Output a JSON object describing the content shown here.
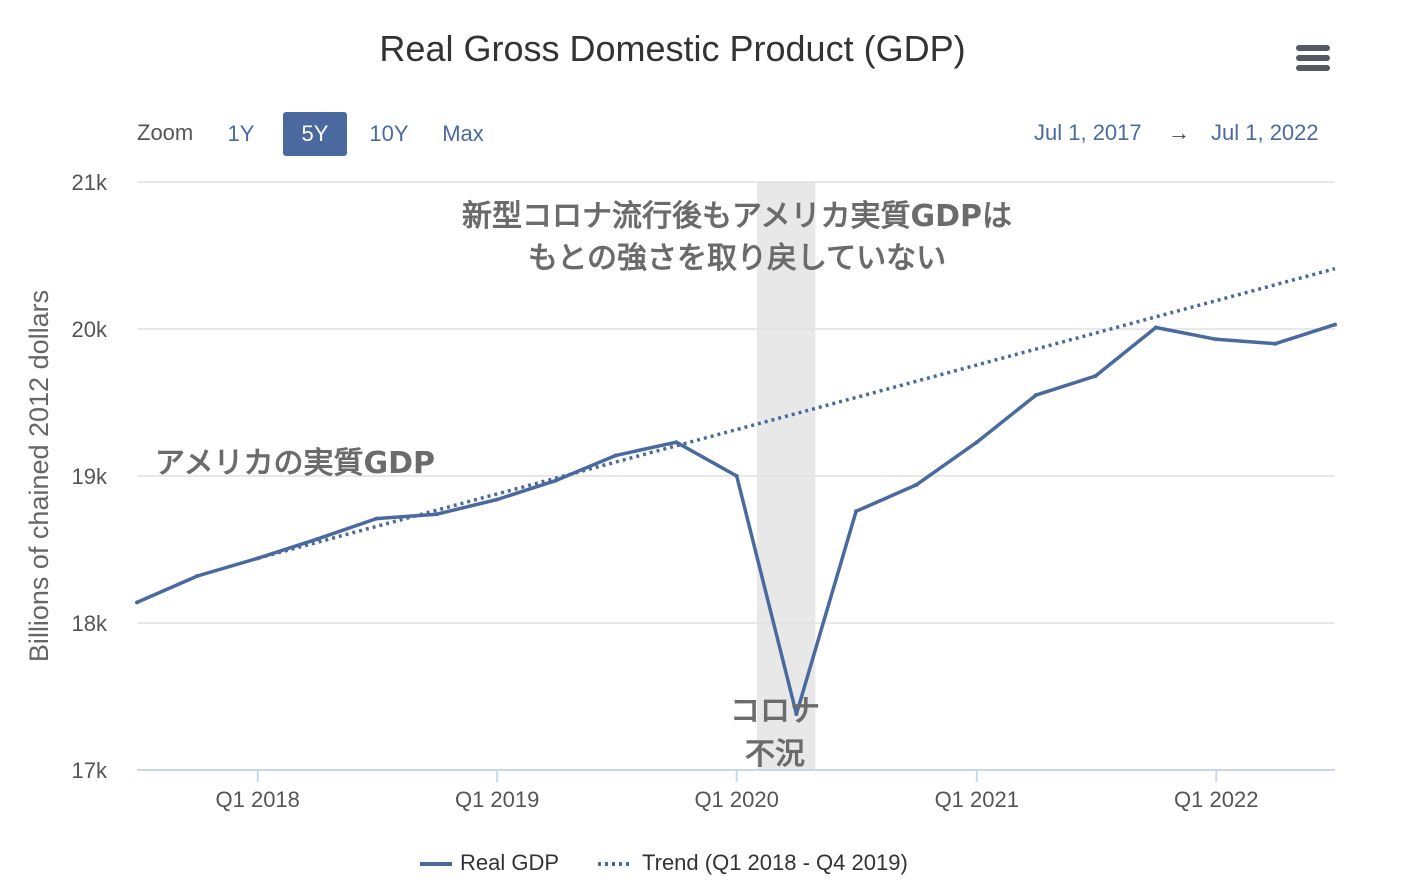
{
  "header": {
    "title": "Real Gross Domestic Product (GDP)",
    "zoom_label": "Zoom",
    "zoom_buttons": [
      "1Y",
      "5Y",
      "10Y",
      "Max"
    ],
    "zoom_active": "5Y",
    "range_from": "Jul 1, 2017",
    "range_arrow": "→",
    "range_to": "Jul 1, 2022"
  },
  "annotations": {
    "top_line1": "新型コロナ流行後もアメリカ実質GDPは",
    "top_line2": "もとの強さを取り戻していない",
    "left_label": "アメリカの実質GDP",
    "covid_line1": "コロナ",
    "covid_line2": "不況"
  },
  "legend": {
    "real_gdp": "Real GDP",
    "trend": "Trend (Q1 2018 - Q4 2019)"
  },
  "colors": {
    "series": "#4a6a9f",
    "recession_band": "#e8e8e8",
    "grid": "#e0e0e0",
    "axis": "#ccd6eb"
  },
  "chart_data": {
    "type": "line",
    "ylabel": "Billions of chained 2012 dollars",
    "ylim": [
      17000,
      21000
    ],
    "yticks": [
      17000,
      18000,
      19000,
      20000,
      21000
    ],
    "ytick_labels": [
      "17k",
      "18k",
      "19k",
      "20k",
      "21k"
    ],
    "xlim": [
      "2017-07-01",
      "2022-07-01"
    ],
    "xticks": [
      "2018-01-01",
      "2019-01-01",
      "2020-01-01",
      "2021-01-01",
      "2022-01-01"
    ],
    "xtick_labels": [
      "Q1 2018",
      "Q1 2019",
      "Q1 2020",
      "Q1 2021",
      "Q1 2022"
    ],
    "recession_band": [
      "2020-02-01",
      "2020-04-30"
    ],
    "series": [
      {
        "name": "Real GDP",
        "style": "solid",
        "x": [
          "2017-07-01",
          "2017-10-01",
          "2018-01-01",
          "2018-04-01",
          "2018-07-01",
          "2018-10-01",
          "2019-01-01",
          "2019-04-01",
          "2019-07-01",
          "2019-10-01",
          "2020-01-01",
          "2020-04-01",
          "2020-07-01",
          "2020-10-01",
          "2021-01-01",
          "2021-04-01",
          "2021-07-01",
          "2021-10-01",
          "2022-01-01",
          "2022-04-01",
          "2022-07-01"
        ],
        "values": [
          18140,
          18320,
          18440,
          18570,
          18710,
          18740,
          18840,
          18970,
          19140,
          19230,
          19000,
          17380,
          18760,
          18940,
          19230,
          19550,
          19680,
          20010,
          19930,
          19900,
          20030
        ]
      },
      {
        "name": "Trend (Q1 2018 - Q4 2019)",
        "style": "dotted",
        "x": [
          "2018-01-01",
          "2022-07-01"
        ],
        "values": [
          18440,
          20410
        ]
      }
    ]
  }
}
